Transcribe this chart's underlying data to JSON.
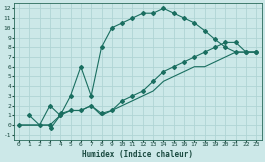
{
  "xlabel": "Humidex (Indice chaleur)",
  "xlim": [
    -0.5,
    23.5
  ],
  "ylim": [
    -1.5,
    12.5
  ],
  "xticks": [
    0,
    1,
    2,
    3,
    4,
    5,
    6,
    7,
    8,
    9,
    10,
    11,
    12,
    13,
    14,
    15,
    16,
    17,
    18,
    19,
    20,
    21,
    22,
    23
  ],
  "yticks": [
    -1,
    0,
    1,
    2,
    3,
    4,
    5,
    6,
    7,
    8,
    9,
    10,
    11,
    12
  ],
  "bg_color": "#cce8e8",
  "grid_color": "#b0d4d4",
  "line_color": "#1a6e60",
  "line1_x": [
    1,
    2,
    3,
    4,
    5,
    6,
    7,
    8,
    9,
    10,
    11,
    12,
    13,
    14,
    15,
    16,
    17,
    18,
    19,
    20,
    21,
    22,
    23
  ],
  "line1_y": [
    1,
    0,
    2,
    1,
    3,
    6,
    3,
    8,
    10,
    10.5,
    11,
    11.5,
    11.5,
    12,
    11.5,
    11,
    10.5,
    9.7,
    8.8,
    8,
    7.5,
    7.5,
    7.5
  ],
  "line2_x": [
    0,
    3,
    3.1,
    4,
    4.1,
    5,
    6,
    7,
    8,
    9,
    10,
    11,
    12,
    13,
    14,
    15,
    16,
    17,
    18,
    19,
    20,
    21,
    22,
    23
  ],
  "line2_y": [
    0,
    0,
    -0.3,
    1,
    1.2,
    1.5,
    1.5,
    2.0,
    1.2,
    1.5,
    2.5,
    3.0,
    3.5,
    4.5,
    5.5,
    6.0,
    6.5,
    7.0,
    7.5,
    8.0,
    8.5,
    8.5,
    7.5,
    7.5
  ],
  "line3_x": [
    0,
    3,
    4,
    5,
    6,
    7,
    8,
    9,
    10,
    11,
    12,
    13,
    14,
    15,
    16,
    17,
    18,
    19,
    20,
    21,
    22,
    23
  ],
  "line3_y": [
    0,
    0,
    1,
    1.5,
    1.5,
    2,
    1,
    1.5,
    2,
    2.5,
    3,
    3.5,
    4.5,
    5,
    5.5,
    6,
    6,
    6.5,
    7,
    7.5,
    7.5,
    7.5
  ]
}
